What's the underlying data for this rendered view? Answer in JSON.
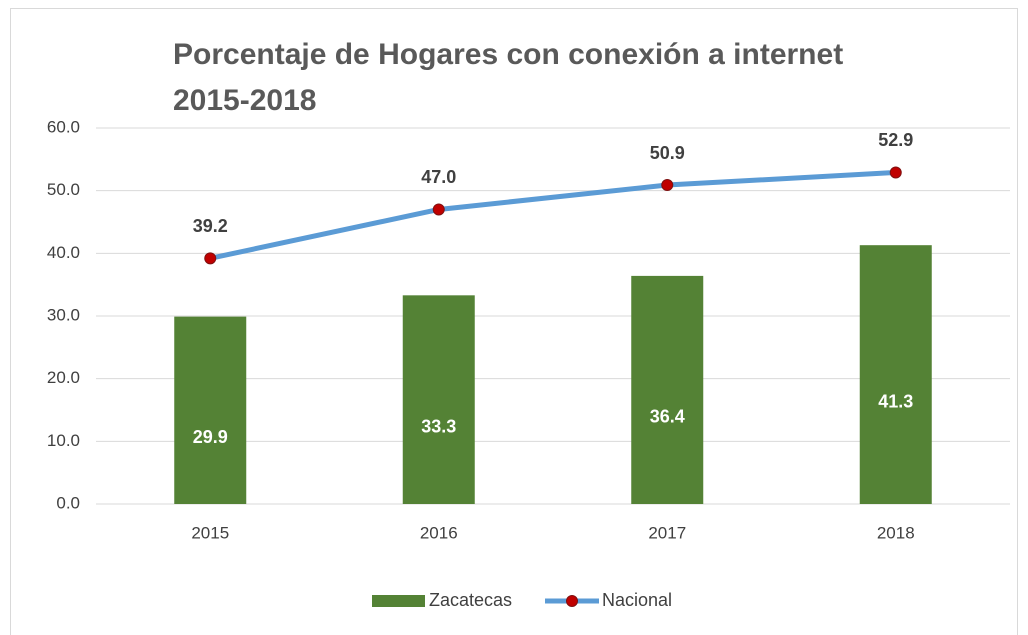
{
  "chart_data": {
    "type": "bar-line",
    "title": "Porcentaje de Hogares con conexión a internet 2015-2018",
    "categories": [
      "2015",
      "2016",
      "2017",
      "2018"
    ],
    "series": [
      {
        "name": "Zacatecas",
        "type": "bar",
        "color": "#548235",
        "values": [
          29.9,
          33.3,
          36.4,
          41.3
        ]
      },
      {
        "name": "Nacional",
        "type": "line",
        "color": "#5b9bd5",
        "marker_color": "#c00000",
        "values": [
          39.2,
          47.0,
          50.9,
          52.9
        ],
        "value_labels": [
          "39.2",
          "47.0",
          "50.9",
          "52.9"
        ]
      }
    ],
    "ylim": [
      0,
      60
    ],
    "yticks": [
      {
        "value": 0,
        "label": "0.0"
      },
      {
        "value": 10,
        "label": "10.0"
      },
      {
        "value": 20,
        "label": "20.0"
      },
      {
        "value": 30,
        "label": "30.0"
      },
      {
        "value": 40,
        "label": "40.0"
      },
      {
        "value": 50,
        "label": "50.0"
      },
      {
        "value": 60,
        "label": "60.0"
      }
    ],
    "grid": true,
    "legend": "bottom"
  }
}
